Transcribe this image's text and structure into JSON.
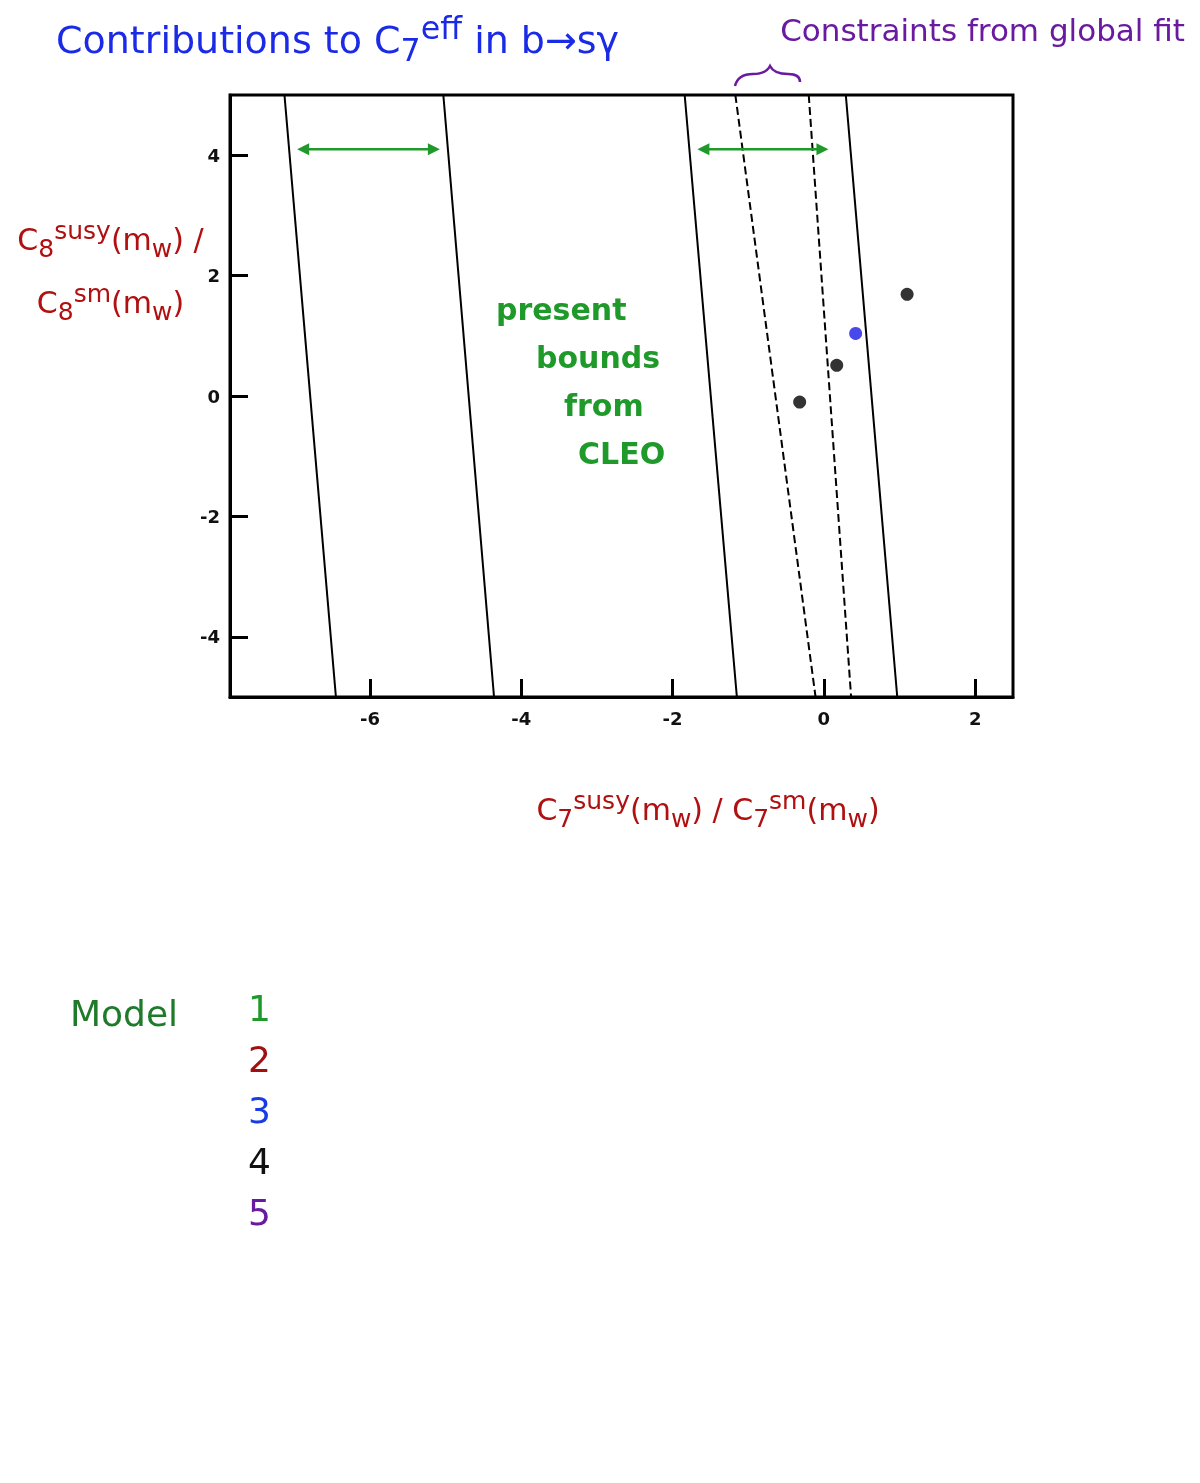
{
  "chart_data": {
    "type": "scatter",
    "title": "Contributions to C$_{7}$$^{eff}$ in b→sγ",
    "subtitle": "Constraints from global fit",
    "xlabel": "C$_{7}$$^{susy}$(m$_{w}$) / C$_{7}$$^{sm}$(m$_{w}$)",
    "ylabel": "C$_{8}$$^{susy}$(m$_{w}$) / C$_{8}$$^{sm}$(m$_{w}$)",
    "xlim": [
      -7.85,
      2.5
    ],
    "xticks": [
      -6,
      -4,
      -2,
      0,
      2
    ],
    "ylim": [
      -5,
      5
    ],
    "yticks": [
      -4,
      -2,
      0,
      2,
      4
    ],
    "grid": false,
    "marker": "circle",
    "annotations": [
      "present bounds from CLEO",
      "Model",
      "1",
      "2",
      "3",
      "4",
      "5"
    ],
    "series": [
      {
        "type": "line",
        "color": "#000000",
        "line_style": "solid",
        "marker": "none",
        "x": [
          -7.13,
          -6.45
        ],
        "values": [
          5,
          -5
        ]
      },
      {
        "type": "line",
        "color": "#000000",
        "line_style": "solid",
        "marker": "none",
        "x": [
          -5.03,
          -4.36
        ],
        "values": [
          5,
          -5
        ]
      },
      {
        "type": "line",
        "color": "#000000",
        "line_style": "solid",
        "marker": "none",
        "x": [
          -1.84,
          -1.15
        ],
        "values": [
          5,
          -5
        ]
      },
      {
        "type": "line",
        "color": "#000000",
        "line_style": "solid",
        "marker": "none",
        "x": [
          0.29,
          0.97
        ],
        "values": [
          5,
          -5
        ]
      },
      {
        "type": "line",
        "color": "#000000",
        "line_style": "dashed",
        "marker": "none",
        "x": [
          -1.17,
          -0.11
        ],
        "values": [
          5,
          -5
        ]
      },
      {
        "type": "line",
        "color": "#000000",
        "line_style": "dashed",
        "marker": "none",
        "x": [
          -0.2,
          0.36
        ],
        "values": [
          5,
          -5
        ]
      },
      {
        "x": [
          -0.32,
          0.17,
          0.42,
          1.1
        ],
        "values": [
          -0.1,
          0.51,
          1.04,
          1.69
        ],
        "colors": [
          "#000000",
          "#000000",
          "#1a1ae6",
          "#000000"
        ]
      }
    ]
  }
}
